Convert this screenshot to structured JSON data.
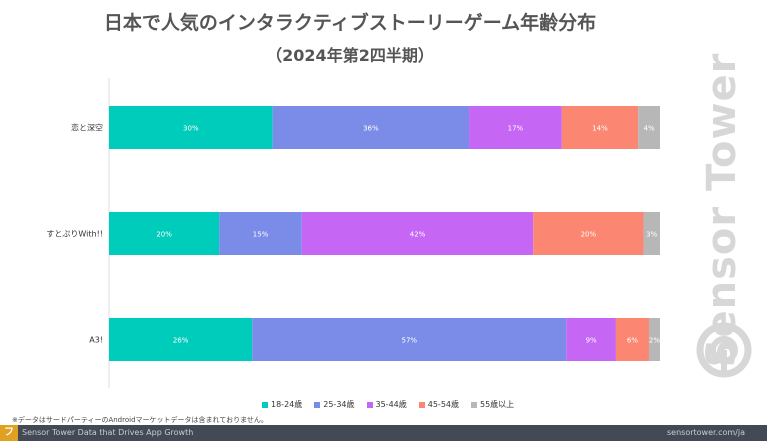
{
  "chart_data": {
    "type": "bar",
    "orientation": "horizontal",
    "stacked": true,
    "title": "日本で人気のインタラクティブストーリーゲーム年齢分布",
    "subtitle": "（2024年第2四半期）",
    "categories": [
      "恋と深空",
      "すとぷりWith!!",
      "A3!"
    ],
    "series": [
      {
        "name": "18-24歳",
        "color": "#00ccbb",
        "values": [
          30,
          20,
          26
        ],
        "labels": [
          "30%",
          "20%",
          "26%"
        ]
      },
      {
        "name": "25-34歳",
        "color": "#7b8ce8",
        "values": [
          36,
          15,
          57
        ],
        "labels": [
          "36%",
          "15%",
          "57%"
        ]
      },
      {
        "name": "35-44歳",
        "color": "#c566f5",
        "values": [
          17,
          42,
          9
        ],
        "labels": [
          "17%",
          "42%",
          "9%"
        ]
      },
      {
        "name": "45-54歳",
        "color": "#fb8772",
        "values": [
          14,
          20,
          6
        ],
        "labels": [
          "14%",
          "20%",
          "6%"
        ]
      },
      {
        "name": "55歳以上",
        "color": "#b7b7b7",
        "values": [
          4,
          3,
          2
        ],
        "labels": [
          "4%",
          "3%",
          "2%"
        ]
      }
    ],
    "legend_position": "bottom",
    "grid": false
  },
  "note": "※データはサードパーティーのAndroidマーケットデータは含まれておりません。",
  "footer": {
    "left": "Sensor Tower Data that Drives App Growth",
    "right": "sensortower.com/ja",
    "logo": "フ"
  },
  "watermark": "Sensor Tower"
}
